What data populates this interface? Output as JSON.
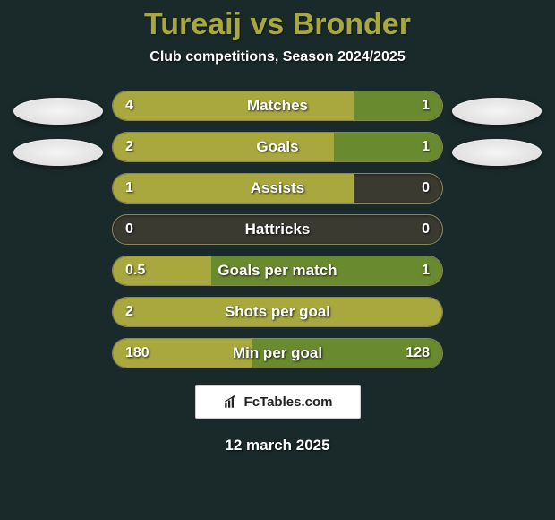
{
  "title": "Tureaij vs Bronder",
  "subtitle": "Club competitions, Season 2024/2025",
  "colors": {
    "background": "#1a2a2a",
    "title_color": "#a8a83f",
    "text_color": "#ffffff",
    "bar_track": "#3a3a30",
    "bar_border": "#888860",
    "left_bar": "#a8a83f",
    "right_bar": "#6a8a2f"
  },
  "fonts": {
    "title_size": 34,
    "subtitle_size": 16,
    "stat_label_size": 17,
    "stat_value_size": 16,
    "date_size": 17
  },
  "stats": [
    {
      "label": "Matches",
      "left_value": "4",
      "right_value": "1",
      "left_pct": 73,
      "right_pct": 27
    },
    {
      "label": "Goals",
      "left_value": "2",
      "right_value": "1",
      "left_pct": 67,
      "right_pct": 33
    },
    {
      "label": "Assists",
      "left_value": "1",
      "right_value": "0",
      "left_pct": 73,
      "right_pct": 0
    },
    {
      "label": "Hattricks",
      "left_value": "0",
      "right_value": "0",
      "left_pct": 0,
      "right_pct": 0
    },
    {
      "label": "Goals per match",
      "left_value": "0.5",
      "right_value": "1",
      "left_pct": 30,
      "right_pct": 70
    },
    {
      "label": "Shots per goal",
      "left_value": "2",
      "right_value": "",
      "left_pct": 100,
      "right_pct": 0
    },
    {
      "label": "Min per goal",
      "left_value": "180",
      "right_value": "128",
      "left_pct": 42,
      "right_pct": 58
    }
  ],
  "attribution": "FcTables.com",
  "date": "12 march 2025"
}
